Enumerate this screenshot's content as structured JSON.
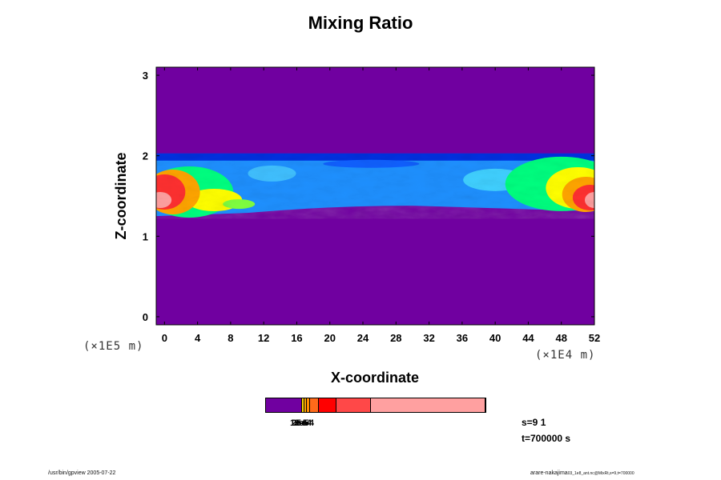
{
  "chart_data": {
    "type": "heatmap",
    "title": "Mixing Ratio",
    "xlabel": "X-coordinate",
    "ylabel": "Z-coordinate",
    "x_scale_label": "(×1E4 m)",
    "y_scale_label": "(×1E5 m)",
    "xlim": [
      -1,
      52
    ],
    "ylim": [
      -0.1,
      3.1
    ],
    "x_ticks": [
      "0",
      "4",
      "8",
      "12",
      "16",
      "20",
      "24",
      "28",
      "32",
      "36",
      "40",
      "44",
      "48",
      "52"
    ],
    "y_ticks": [
      "0",
      "1",
      "2",
      "3"
    ],
    "x_tick_values": [
      0,
      4,
      8,
      12,
      16,
      20,
      24,
      28,
      32,
      36,
      40,
      44,
      48,
      52
    ],
    "y_tick_values": [
      0,
      1,
      2,
      3
    ],
    "background_color": "#7000a0",
    "layer": {
      "z_bottom": 1.25,
      "z_top": 2.0,
      "dominant_color": "#1e90ff",
      "edge_colors": [
        "#00ff7f",
        "#ffff00",
        "#ffa500",
        "#ff4040",
        "#ffa0a0"
      ]
    },
    "colorbar": {
      "segments": [
        {
          "color": "#7000a0",
          "fraction": 0.165
        },
        {
          "color": "#ffd700",
          "fraction": 0.01
        },
        {
          "color": "#ffa500",
          "fraction": 0.01
        },
        {
          "color": "#ff8c00",
          "fraction": 0.015
        },
        {
          "color": "#ff6a1a",
          "fraction": 0.04
        },
        {
          "color": "#ff0000",
          "fraction": 0.08
        },
        {
          "color": "#ff4848",
          "fraction": 0.16
        },
        {
          "color": "#ffa0a0",
          "fraction": 0.52
        }
      ],
      "labels": [
        "1e-5",
        "2e-5",
        "3e-4",
        "5e-4"
      ]
    },
    "grid": false,
    "legend": "bottom-center colorbar"
  },
  "info": {
    "s_label": "s=9 1",
    "t_label": "t=700000 s"
  },
  "footer": {
    "left": "/usr/bin/gpview 2005-07-22",
    "right_main": "arare-nakajima",
    "right_small": "03_1e8_ant.nc@MixRt,s=9,t=700000"
  }
}
